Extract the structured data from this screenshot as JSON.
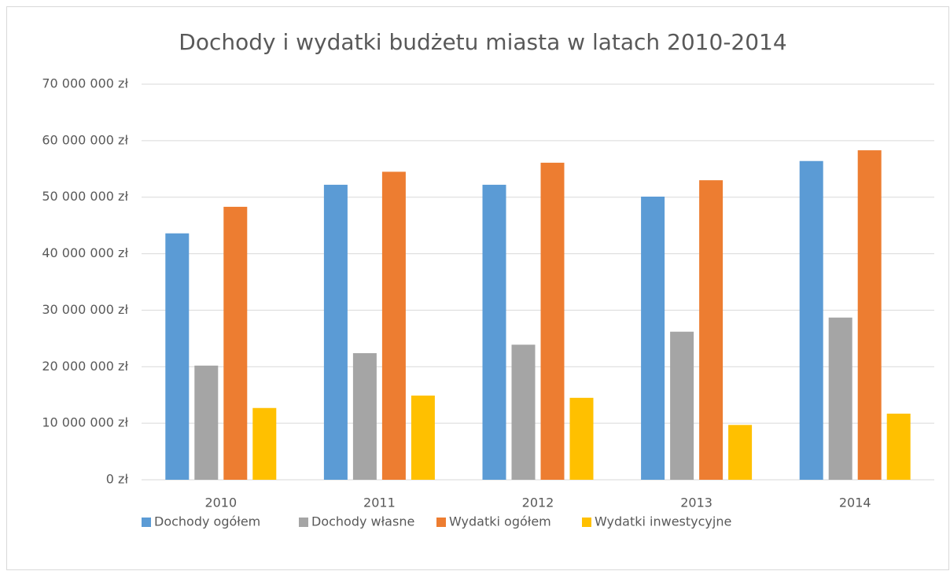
{
  "chart_data": {
    "type": "bar",
    "title": "Dochody i wydatki budżetu miasta w latach 2010-2014",
    "categories": [
      "2010",
      "2011",
      "2012",
      "2013",
      "2014"
    ],
    "series": [
      {
        "name": "Dochody ogółem",
        "color": "#5b9bd5",
        "values": [
          43600000,
          52200000,
          52200000,
          50100000,
          56400000
        ]
      },
      {
        "name": "Dochody własne",
        "color": "#a5a5a5",
        "values": [
          20200000,
          22400000,
          23900000,
          26200000,
          28700000
        ]
      },
      {
        "name": "Wydatki ogółem",
        "color": "#ed7d31",
        "values": [
          48300000,
          54500000,
          56100000,
          53000000,
          58300000
        ]
      },
      {
        "name": "Wydatki inwestycyjne",
        "color": "#ffc000",
        "values": [
          12700000,
          14900000,
          14500000,
          9700000,
          11700000
        ]
      }
    ],
    "ylim": [
      0,
      70000000
    ],
    "yticks": [
      {
        "value": 0,
        "label": "0 zł"
      },
      {
        "value": 10000000,
        "label": "10 000 000 zł"
      },
      {
        "value": 20000000,
        "label": "20 000 000 zł"
      },
      {
        "value": 30000000,
        "label": "30 000 000 zł"
      },
      {
        "value": 40000000,
        "label": "40 000 000 zł"
      },
      {
        "value": 50000000,
        "label": "50 000 000 zł"
      },
      {
        "value": 60000000,
        "label": "60 000 000 zł"
      },
      {
        "value": 70000000,
        "label": "70 000 000 zł"
      }
    ],
    "grid": true,
    "legend": "bottom"
  }
}
